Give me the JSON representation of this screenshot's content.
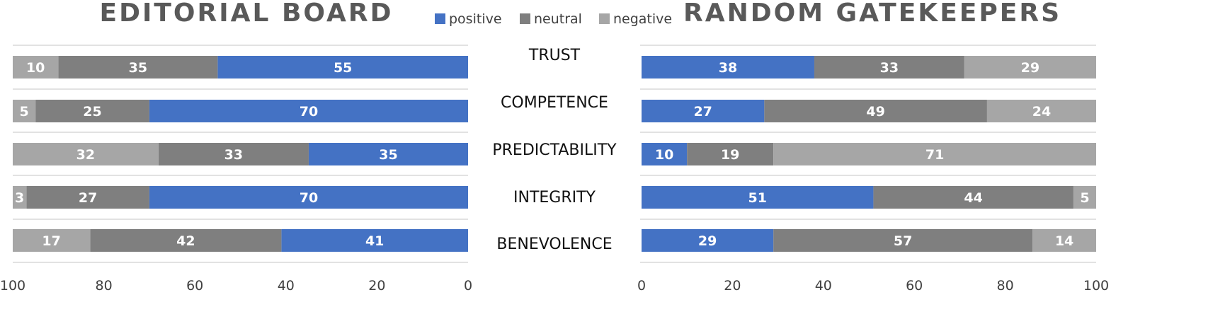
{
  "chart_data": [
    {
      "type": "bar",
      "orientation": "horizontal",
      "stacked": true,
      "title": "EDITORIAL BOARD",
      "x_direction": "reversed",
      "xlim": [
        0,
        100
      ],
      "x_ticks": [
        "100",
        "80",
        "60",
        "40",
        "20",
        "0"
      ],
      "categories": [
        "TRUST",
        "COMPETENCE",
        "PREDICTABILITY",
        "INTEGRITY",
        "BENEVOLENCE"
      ],
      "series": [
        {
          "name": "positive",
          "color": "#4472c4",
          "values": [
            55,
            70,
            35,
            70,
            41
          ]
        },
        {
          "name": "neutral",
          "color": "#7f7f7f",
          "values": [
            35,
            25,
            33,
            27,
            42
          ]
        },
        {
          "name": "negative",
          "color": "#a6a6a6",
          "values": [
            10,
            5,
            32,
            3,
            17
          ]
        }
      ]
    },
    {
      "type": "bar",
      "orientation": "horizontal",
      "stacked": true,
      "title": "RANDOM GATEKEEPERS",
      "x_direction": "normal",
      "xlim": [
        0,
        100
      ],
      "x_ticks": [
        "0",
        "20",
        "40",
        "60",
        "80",
        "100"
      ],
      "categories": [
        "TRUST",
        "COMPETENCE",
        "PREDICTABILITY",
        "INTEGRITY",
        "BENEVOLENCE"
      ],
      "series": [
        {
          "name": "positive",
          "color": "#4472c4",
          "values": [
            38,
            27,
            10,
            51,
            29
          ]
        },
        {
          "name": "neutral",
          "color": "#7f7f7f",
          "values": [
            33,
            49,
            19,
            44,
            57
          ]
        },
        {
          "name": "negative",
          "color": "#a6a6a6",
          "values": [
            29,
            24,
            71,
            5,
            14
          ]
        }
      ]
    }
  ],
  "legend": {
    "placement": "top-center",
    "items": [
      {
        "label": "positive",
        "color": "#4472c4"
      },
      {
        "label": "neutral",
        "color": "#7f7f7f"
      },
      {
        "label": "negative",
        "color": "#a6a6a6"
      }
    ]
  },
  "colors": {
    "gridline": "#d9d9d9",
    "axis": "#bfbfbf"
  }
}
